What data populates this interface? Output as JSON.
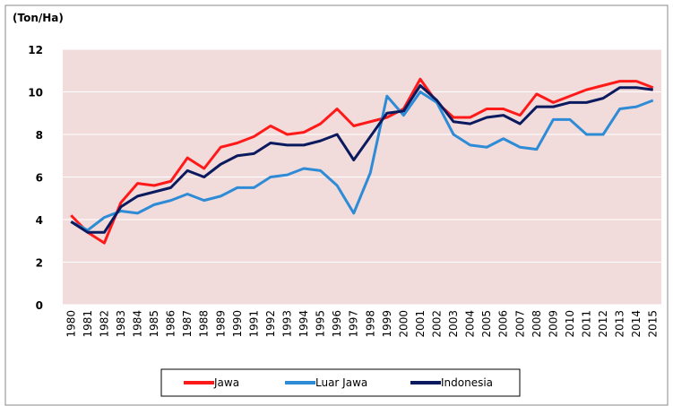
{
  "chart_data": {
    "type": "line",
    "y_label": "(Ton/Ha)",
    "categories": [
      "1980",
      "1981",
      "1982",
      "1983",
      "1984",
      "1985",
      "1986",
      "1987",
      "1988",
      "1989",
      "1990",
      "1991",
      "1992",
      "1993",
      "1994",
      "1995",
      "1996",
      "1997",
      "1998",
      "1999",
      "2000",
      "2001",
      "2002",
      "2003",
      "2004",
      "2005",
      "2006",
      "2007",
      "2008",
      "2009",
      "2010",
      "2011",
      "2012",
      "2013",
      "2014",
      "2015"
    ],
    "ylim": [
      0,
      12
    ],
    "yticks": [
      0,
      2,
      4,
      6,
      8,
      10,
      12
    ],
    "grid": true,
    "legend": "bottom",
    "series": [
      {
        "name": "Jawa",
        "color": "#ff1a1a",
        "values": [
          4.2,
          3.4,
          2.9,
          4.8,
          5.7,
          5.6,
          5.8,
          6.9,
          6.4,
          7.4,
          7.6,
          7.9,
          8.4,
          8.0,
          8.1,
          8.5,
          9.2,
          8.4,
          8.6,
          8.8,
          9.2,
          10.6,
          9.5,
          8.8,
          8.8,
          9.2,
          9.2,
          8.9,
          9.9,
          9.5,
          9.8,
          10.1,
          10.3,
          10.5,
          10.5,
          10.2
        ]
      },
      {
        "name": "Luar Jawa",
        "color": "#2e8bd6",
        "values": [
          3.9,
          3.5,
          4.1,
          4.4,
          4.3,
          4.7,
          4.9,
          5.2,
          4.9,
          5.1,
          5.5,
          5.5,
          6.0,
          6.1,
          6.4,
          6.3,
          5.6,
          4.3,
          6.2,
          9.8,
          8.9,
          10.0,
          9.5,
          8.0,
          7.5,
          7.4,
          7.8,
          7.4,
          7.3,
          8.7,
          8.7,
          8.0,
          8.0,
          9.2,
          9.3,
          9.6
        ]
      },
      {
        "name": "Indonesia",
        "color": "#0b1a5e",
        "values": [
          3.9,
          3.4,
          3.4,
          4.6,
          5.1,
          5.3,
          5.5,
          6.3,
          6.0,
          6.6,
          7.0,
          7.1,
          7.6,
          7.5,
          7.5,
          7.7,
          8.0,
          6.8,
          7.9,
          9.0,
          9.1,
          10.3,
          9.6,
          8.6,
          8.5,
          8.8,
          8.9,
          8.5,
          9.3,
          9.3,
          9.5,
          9.5,
          9.7,
          10.2,
          10.2,
          10.1
        ]
      }
    ]
  }
}
